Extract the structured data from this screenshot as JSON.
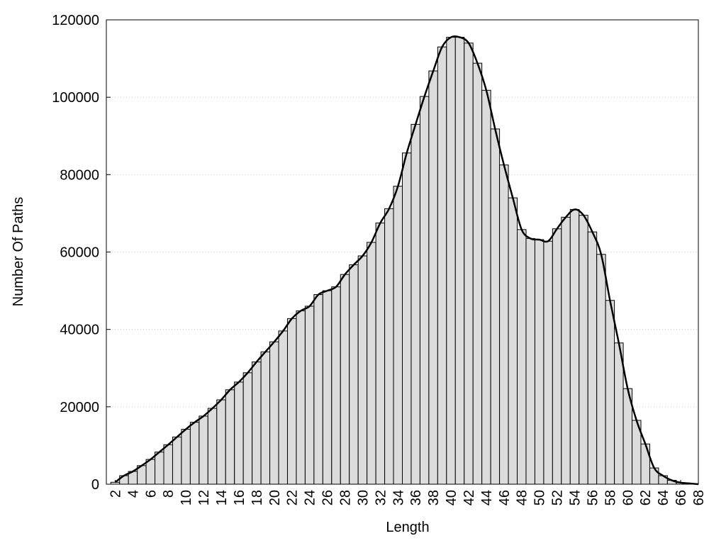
{
  "chart_data": {
    "type": "bar",
    "x_label": "Length",
    "y_label": "Number Of Paths",
    "categories": [
      2,
      3,
      4,
      5,
      6,
      7,
      8,
      9,
      10,
      11,
      12,
      13,
      14,
      15,
      16,
      17,
      18,
      19,
      20,
      21,
      22,
      23,
      24,
      25,
      26,
      27,
      28,
      29,
      30,
      31,
      32,
      33,
      34,
      35,
      36,
      37,
      38,
      39,
      40,
      41,
      42,
      43,
      44,
      45,
      46,
      47,
      48,
      49,
      50,
      51,
      52,
      53,
      54,
      55,
      56,
      57,
      58,
      59,
      60,
      61,
      62,
      63,
      64,
      65,
      66,
      67,
      68
    ],
    "values": [
      500,
      2200,
      3300,
      4800,
      6400,
      8300,
      10200,
      12200,
      14200,
      16000,
      17600,
      19600,
      21800,
      24400,
      26400,
      28800,
      31600,
      34200,
      36800,
      39600,
      42800,
      44800,
      46000,
      49000,
      50000,
      51000,
      54200,
      56700,
      59000,
      62500,
      67500,
      71200,
      77000,
      85600,
      93000,
      100200,
      106800,
      113000,
      115500,
      115500,
      114000,
      108800,
      101800,
      91800,
      82500,
      74000,
      65800,
      63500,
      63200,
      62800,
      66000,
      69000,
      71000,
      69500,
      65200,
      59400,
      47500,
      36500,
      24700,
      16500,
      10400,
      4200,
      2200,
      1000,
      400,
      200,
      0
    ],
    "bar_color": "#dcdcdc",
    "line_color": "#000000",
    "smooth_line": true,
    "xlim": [
      1,
      68
    ],
    "xticks": [
      2,
      4,
      6,
      8,
      10,
      12,
      14,
      16,
      18,
      20,
      22,
      24,
      26,
      28,
      30,
      32,
      34,
      36,
      38,
      40,
      42,
      44,
      46,
      48,
      50,
      52,
      54,
      56,
      58,
      60,
      62,
      64,
      66,
      68
    ],
    "ylim": [
      0,
      120000
    ],
    "yticks": [
      0,
      20000,
      40000,
      60000,
      80000,
      100000,
      120000
    ],
    "grid": true
  }
}
